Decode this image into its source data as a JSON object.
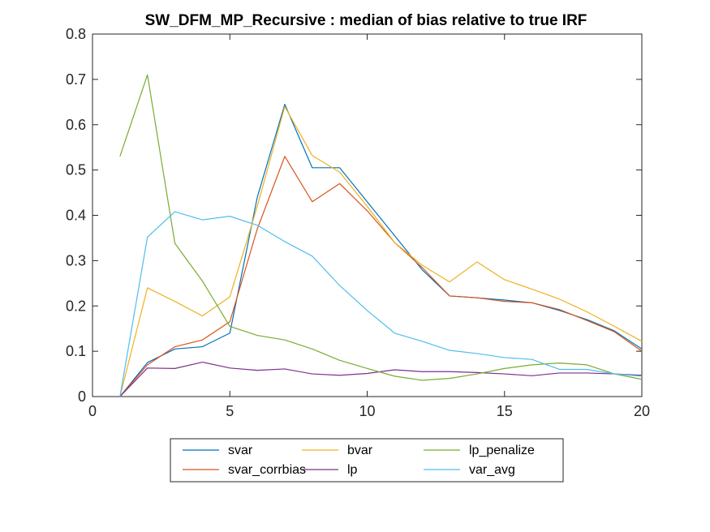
{
  "chart_data": {
    "type": "line",
    "title": "SW_DFM_MP_Recursive : median of bias relative to true IRF",
    "xlabel": "",
    "ylabel": "",
    "xlim": [
      0,
      20
    ],
    "ylim": [
      0,
      0.8
    ],
    "xticks": [
      0,
      5,
      10,
      15,
      20
    ],
    "yticks": [
      0,
      0.1,
      0.2,
      0.3,
      0.4,
      0.5,
      0.6,
      0.7,
      0.8
    ],
    "xtick_labels": [
      "0",
      "5",
      "10",
      "15",
      "20"
    ],
    "ytick_labels": [
      "0",
      "0.1",
      "0.2",
      "0.3",
      "0.4",
      "0.5",
      "0.6",
      "0.7",
      "0.8"
    ],
    "grid": false,
    "legend_position": "bottom-outside",
    "x": [
      1,
      2,
      3,
      4,
      5,
      6,
      7,
      8,
      9,
      10,
      11,
      12,
      13,
      14,
      15,
      16,
      17,
      18,
      19,
      20
    ],
    "series": [
      {
        "name": "svar",
        "color": "#0072BD",
        "values": [
          0.0,
          0.075,
          0.105,
          0.11,
          0.14,
          0.44,
          0.645,
          0.505,
          0.505,
          0.43,
          0.355,
          0.28,
          0.222,
          0.218,
          0.213,
          0.207,
          0.19,
          0.17,
          0.145,
          0.105
        ]
      },
      {
        "name": "svar_corrbias",
        "color": "#D95319",
        "values": [
          0.0,
          0.07,
          0.11,
          0.125,
          0.165,
          0.37,
          0.53,
          0.43,
          0.47,
          0.41,
          0.34,
          0.285,
          0.222,
          0.218,
          0.21,
          0.207,
          0.192,
          0.168,
          0.143,
          0.1
        ]
      },
      {
        "name": "bvar",
        "color": "#EDB120",
        "values": [
          0.0,
          0.24,
          0.21,
          0.178,
          0.22,
          0.42,
          0.64,
          0.532,
          0.495,
          0.42,
          0.34,
          0.29,
          0.253,
          0.297,
          0.258,
          0.237,
          0.215,
          0.187,
          0.155,
          0.122
        ]
      },
      {
        "name": "lp",
        "color": "#7E2F8E",
        "values": [
          0.0,
          0.063,
          0.062,
          0.076,
          0.063,
          0.058,
          0.061,
          0.05,
          0.047,
          0.051,
          0.059,
          0.055,
          0.055,
          0.053,
          0.05,
          0.046,
          0.052,
          0.052,
          0.05,
          0.047
        ]
      },
      {
        "name": "lp_penalize",
        "color": "#77AC30",
        "values": [
          0.53,
          0.71,
          0.338,
          0.255,
          0.155,
          0.135,
          0.125,
          0.105,
          0.08,
          0.062,
          0.045,
          0.036,
          0.04,
          0.05,
          0.062,
          0.07,
          0.074,
          0.07,
          0.05,
          0.038
        ]
      },
      {
        "name": "var_avg",
        "color": "#4DBEEE",
        "values": [
          0.0,
          0.352,
          0.408,
          0.39,
          0.398,
          0.378,
          0.342,
          0.31,
          0.245,
          0.19,
          0.14,
          0.122,
          0.102,
          0.095,
          0.086,
          0.082,
          0.06,
          0.06,
          0.05,
          0.045
        ]
      }
    ],
    "legend_order": [
      "svar",
      "bvar",
      "lp_penalize",
      "svar_corrbias",
      "lp",
      "var_avg"
    ]
  }
}
